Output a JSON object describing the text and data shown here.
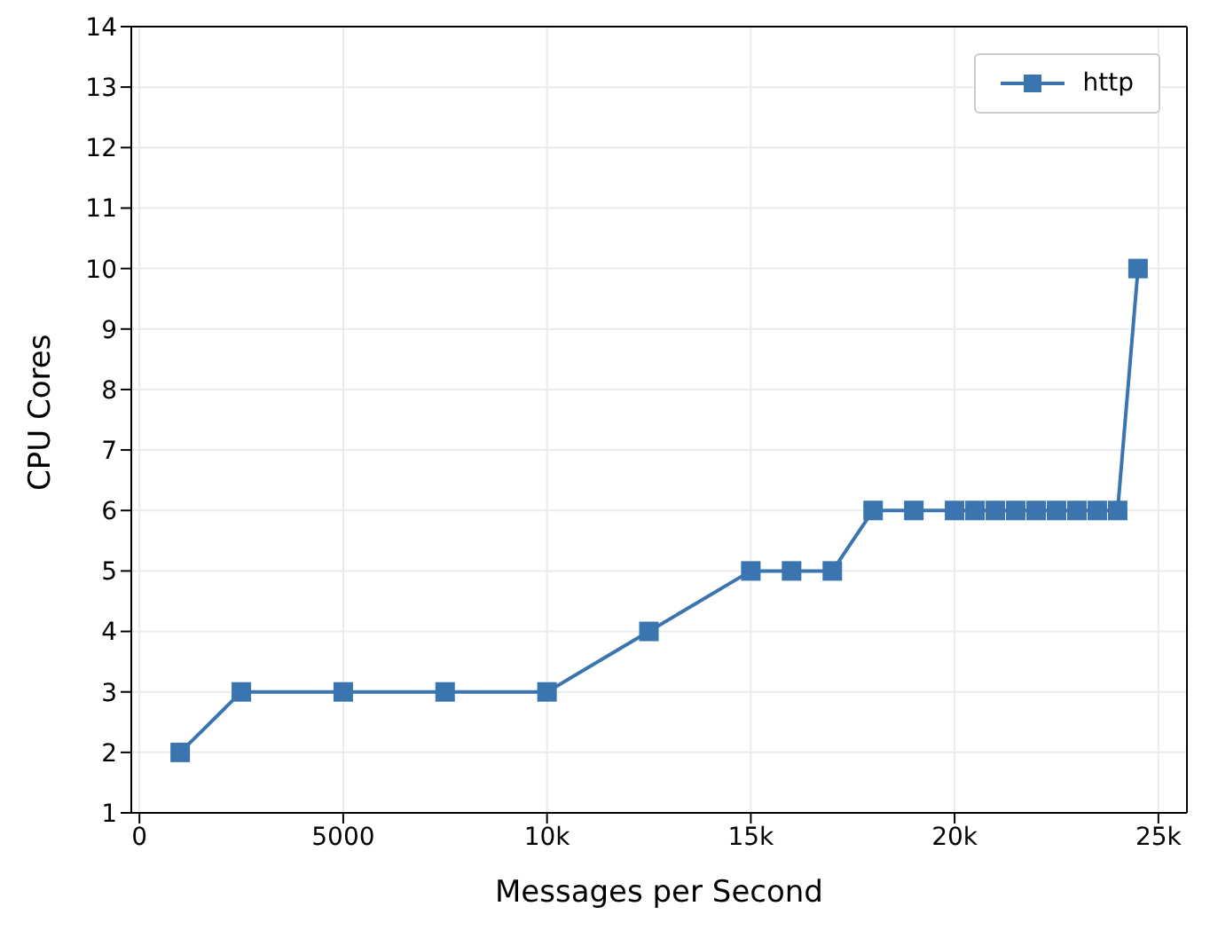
{
  "chart_data": {
    "type": "line",
    "xlabel": "Messages per Second",
    "ylabel": "CPU Cores",
    "x": [
      1000,
      2500,
      5000,
      7500,
      10000,
      12500,
      15000,
      16000,
      17000,
      18000,
      19000,
      20000,
      20500,
      21000,
      21500,
      22000,
      22500,
      23000,
      23500,
      24000,
      24500
    ],
    "series": [
      {
        "name": "http",
        "color": "#3a75b0",
        "values": [
          2,
          3,
          3,
          3,
          3,
          4,
          5,
          5,
          5,
          6,
          6,
          6,
          6,
          6,
          6,
          6,
          6,
          6,
          6,
          6,
          10
        ]
      }
    ],
    "xlim": [
      -200,
      25700
    ],
    "xticks": [
      0,
      5000,
      {
        "value": 10000,
        "label": "10k"
      },
      {
        "value": 15000,
        "label": "15k"
      },
      {
        "value": 20000,
        "label": "20k"
      },
      {
        "value": 25000,
        "label": "25k"
      }
    ],
    "ylim": [
      1,
      14
    ],
    "yticks": [
      1,
      2,
      3,
      4,
      5,
      6,
      7,
      8,
      9,
      10,
      11,
      12,
      13,
      14
    ],
    "grid": true,
    "legend": "top right",
    "marker": "square",
    "line_style": "solid"
  }
}
